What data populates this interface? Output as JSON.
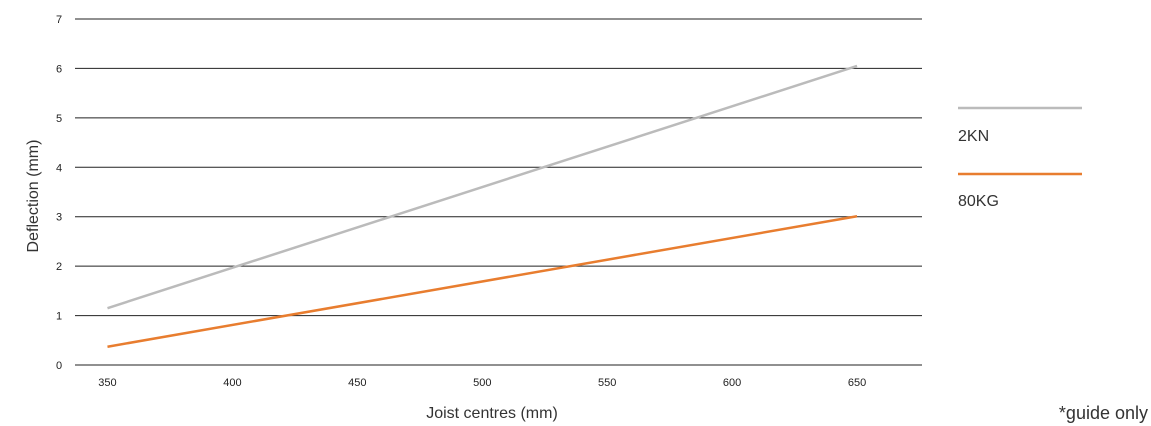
{
  "chart_data": {
    "type": "line",
    "title": "",
    "xlabel": "Joist centres (mm)",
    "ylabel": "Deflection (mm)",
    "x_ticks": [
      350,
      400,
      450,
      500,
      550,
      600,
      650
    ],
    "y_ticks": [
      0,
      1,
      2,
      3,
      4,
      5,
      6,
      7
    ],
    "xlim": [
      337,
      676
    ],
    "ylim": [
      0,
      7
    ],
    "grid": "horizontal",
    "legend_position": "right",
    "series": [
      {
        "name": "2KN",
        "color": "#BBBBBB",
        "x": [
          350,
          650
        ],
        "y": [
          1.15,
          6.05
        ]
      },
      {
        "name": "80KG",
        "color": "#E87D2F",
        "x": [
          350,
          650
        ],
        "y": [
          0.37,
          3.01
        ]
      }
    ],
    "note": "*guide only"
  }
}
